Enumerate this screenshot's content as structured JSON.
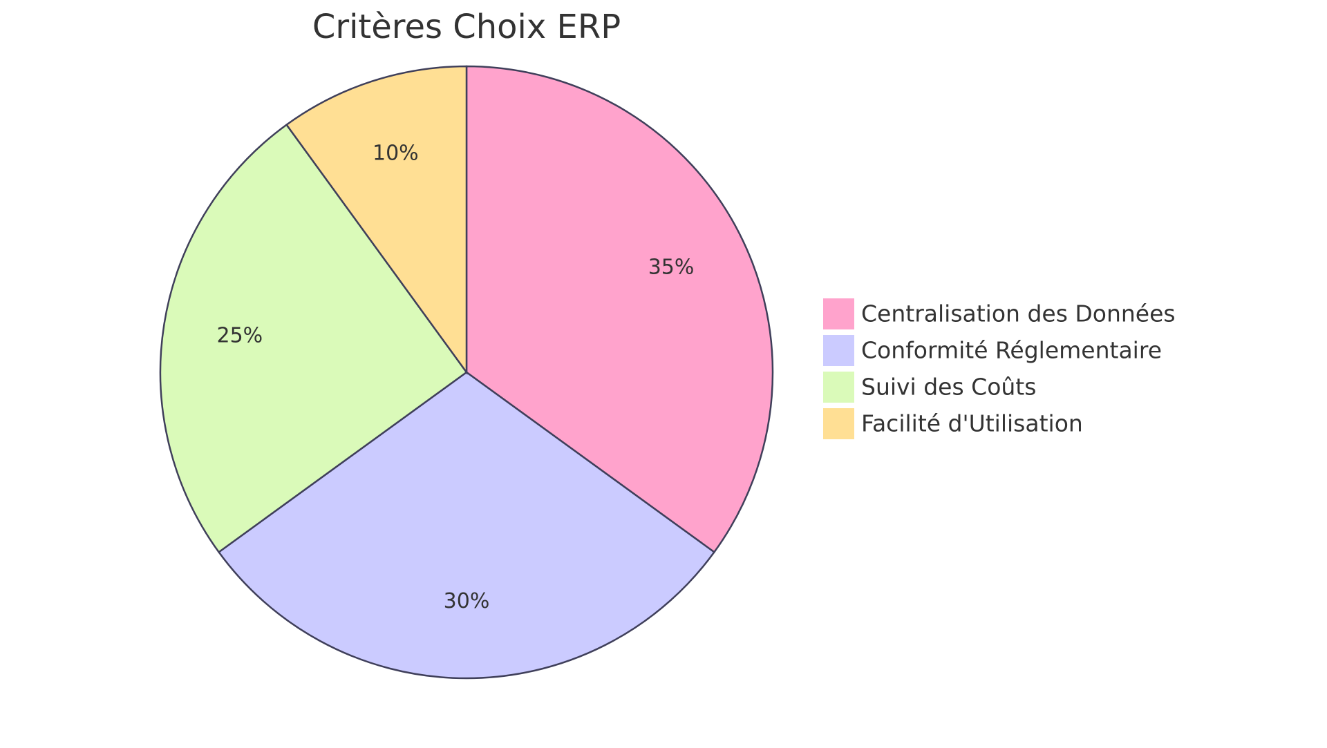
{
  "chart_data": {
    "type": "pie",
    "title": "Critères Choix ERP",
    "categories": [
      "Centralisation des Données",
      "Conformité Réglementaire",
      "Suivi des Coûts",
      "Facilité d'Utilisation"
    ],
    "values": [
      35,
      30,
      25,
      10
    ],
    "value_labels": [
      "35%",
      "30%",
      "25%",
      "10%"
    ],
    "colors": [
      "#ffa3cc",
      "#cbcbff",
      "#dafab9",
      "#ffdf94"
    ],
    "legend": "right"
  }
}
